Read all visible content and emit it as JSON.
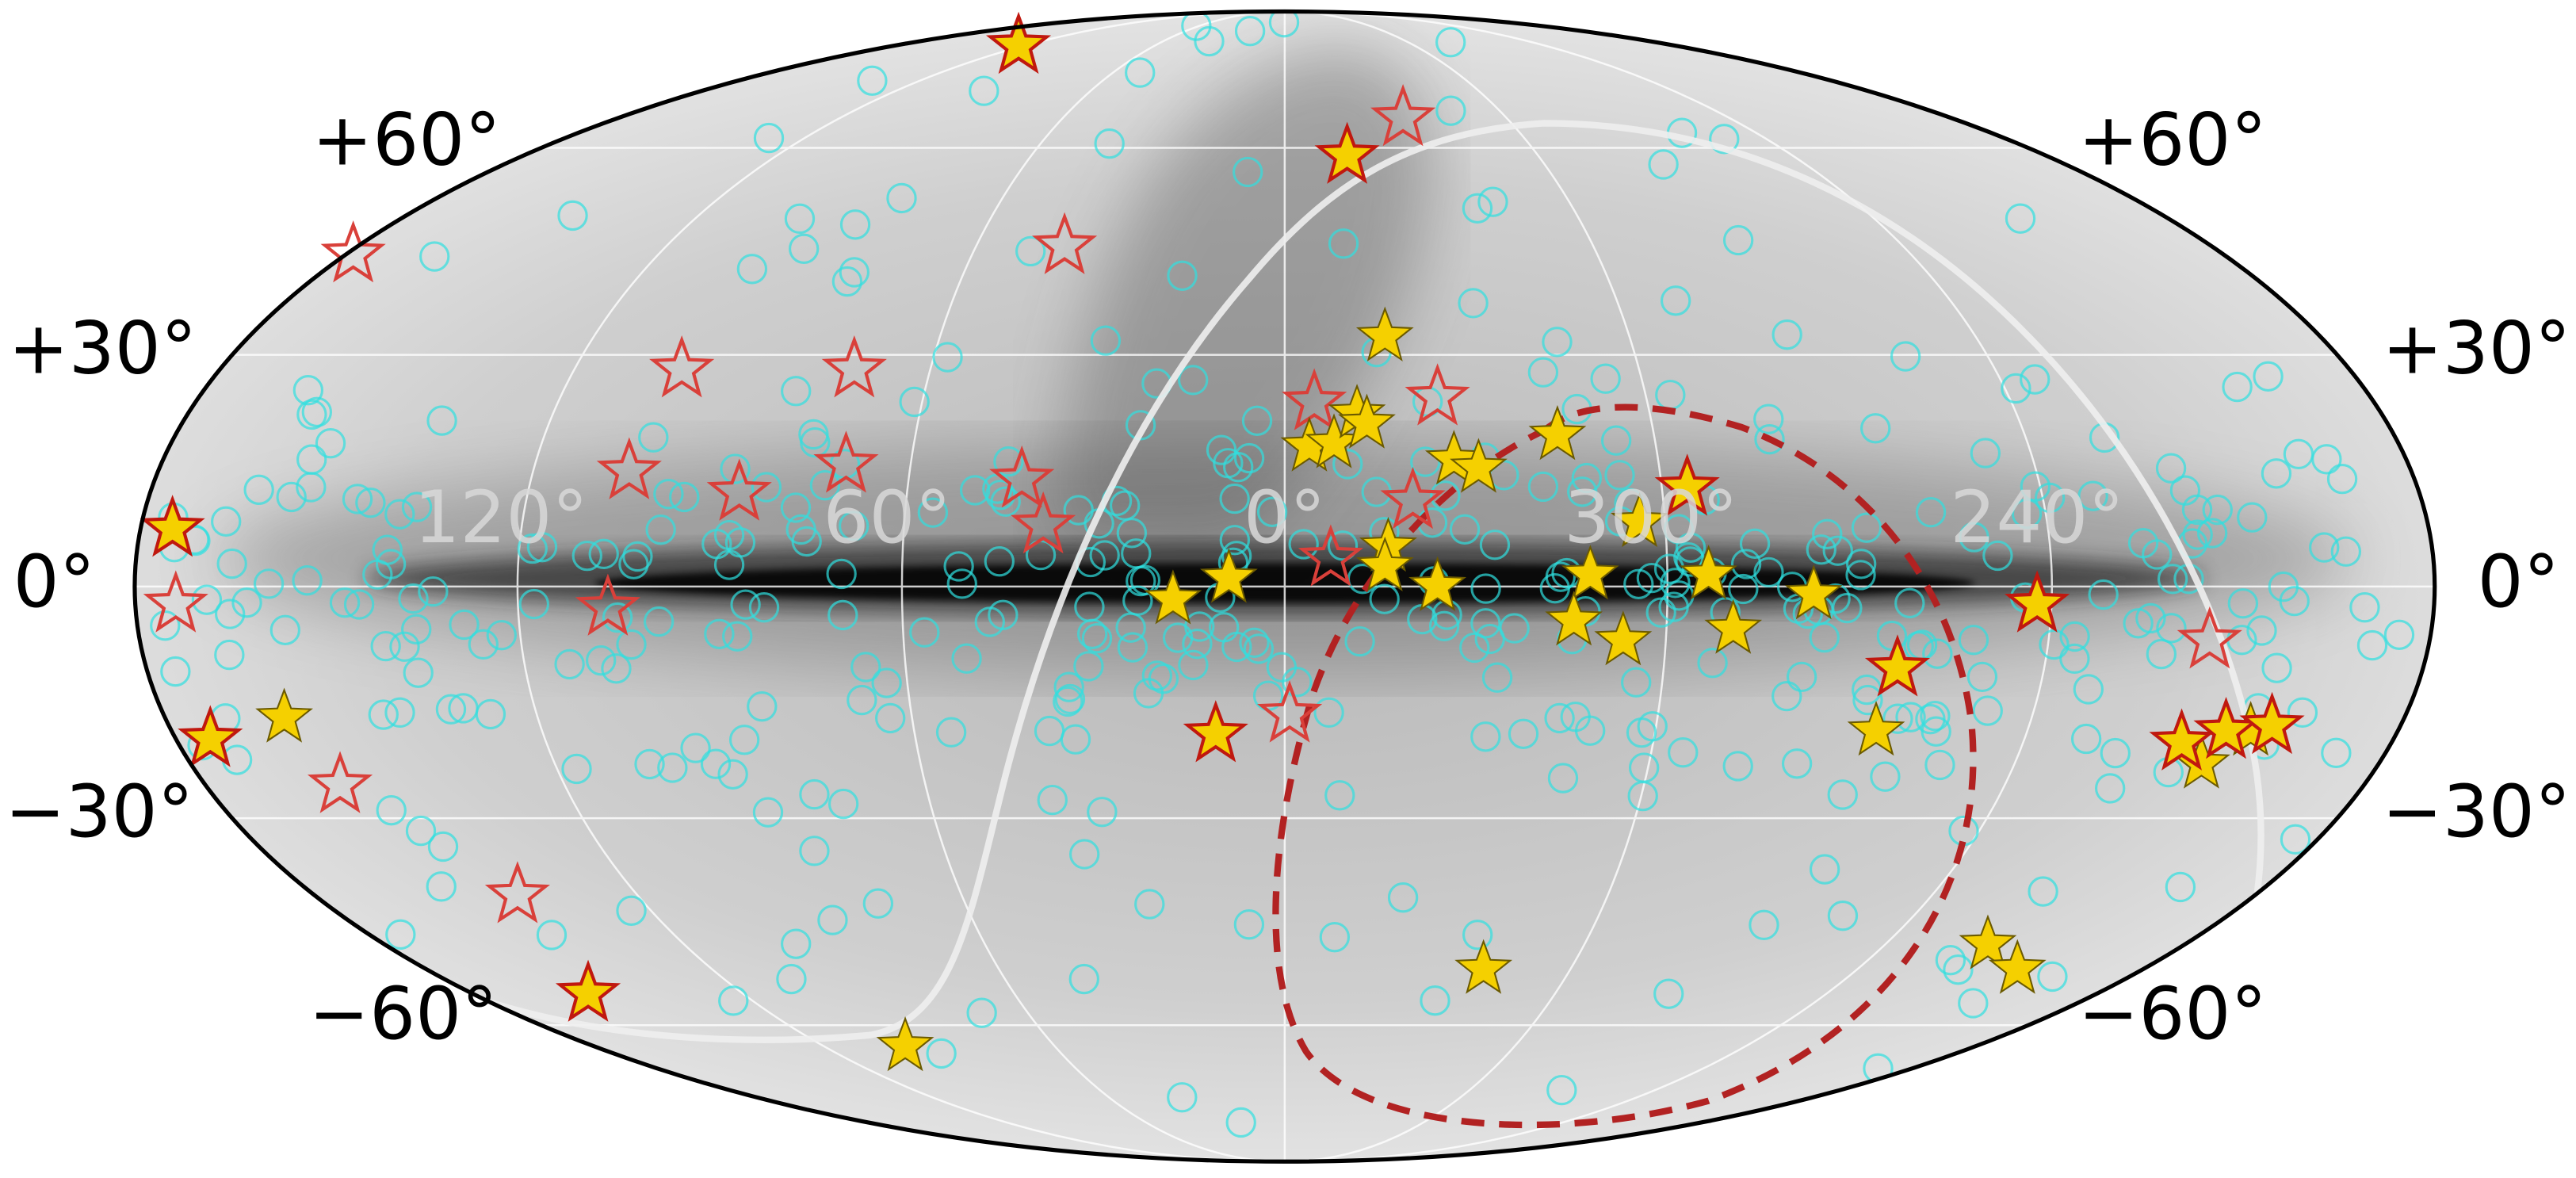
{
  "latitude_labels": {
    "left": [
      "+60°",
      "+30°",
      "0°",
      "−30°",
      "−60°"
    ],
    "right": [
      "+60°",
      "+30°",
      "0°",
      "−30°",
      "−60°"
    ]
  },
  "longitude_labels": [
    "120°",
    "60°",
    "0°",
    "300°",
    "240°"
  ]
}
